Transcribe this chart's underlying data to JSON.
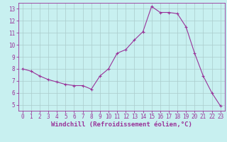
{
  "x": [
    0,
    1,
    2,
    3,
    4,
    5,
    6,
    7,
    8,
    9,
    10,
    11,
    12,
    13,
    14,
    15,
    16,
    17,
    18,
    19,
    20,
    21,
    22,
    23
  ],
  "y": [
    8.0,
    7.8,
    7.4,
    7.1,
    6.9,
    6.7,
    6.6,
    6.6,
    6.3,
    7.4,
    8.0,
    9.3,
    9.6,
    10.4,
    11.1,
    13.2,
    12.7,
    12.7,
    12.6,
    11.5,
    9.3,
    7.4,
    6.0,
    4.9
  ],
  "line_color": "#993399",
  "marker": "+",
  "marker_size": 3,
  "bg_color": "#c8f0f0",
  "grid_color": "#aacccc",
  "xlabel": "Windchill (Refroidissement éolien,°C)",
  "ylim": [
    4.5,
    13.5
  ],
  "xlim": [
    -0.5,
    23.5
  ],
  "yticks": [
    5,
    6,
    7,
    8,
    9,
    10,
    11,
    12,
    13
  ],
  "xticks": [
    0,
    1,
    2,
    3,
    4,
    5,
    6,
    7,
    8,
    9,
    10,
    11,
    12,
    13,
    14,
    15,
    16,
    17,
    18,
    19,
    20,
    21,
    22,
    23
  ],
  "tick_fontsize": 5.5,
  "xlabel_fontsize": 6.5,
  "spine_color": "#993399",
  "line_width": 0.8,
  "marker_edge_width": 0.8
}
